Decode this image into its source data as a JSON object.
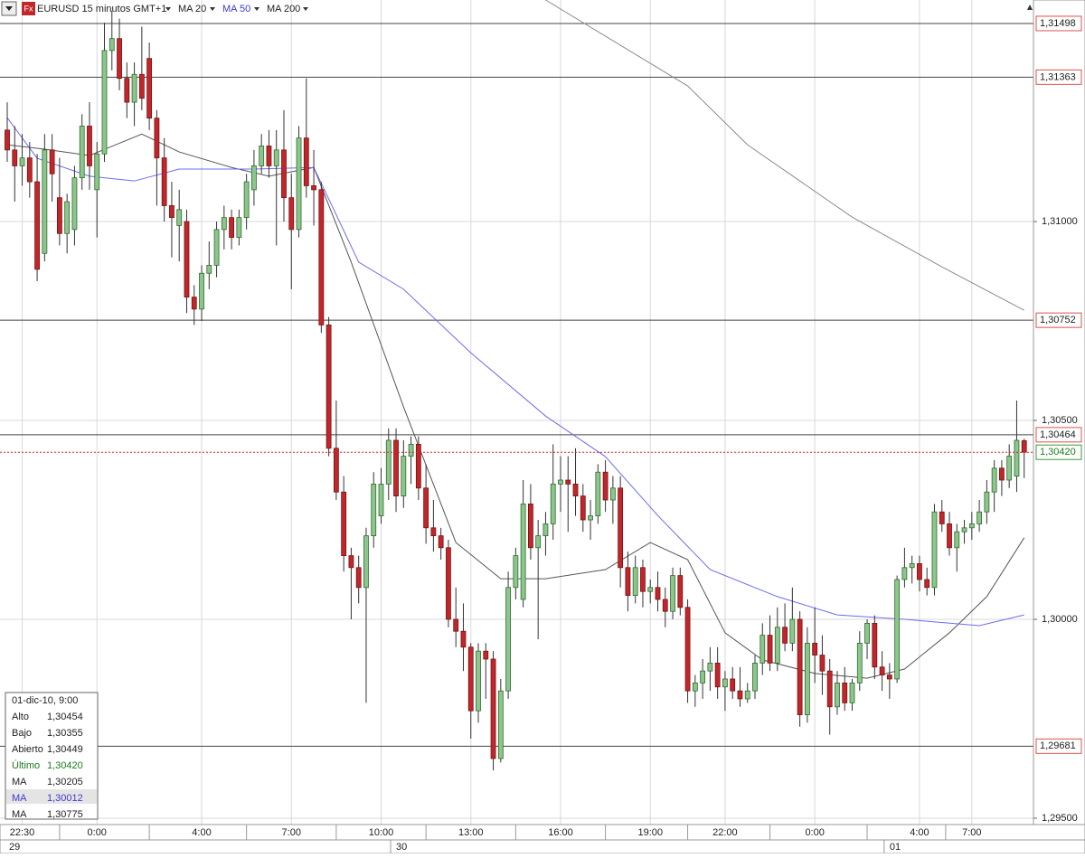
{
  "header": {
    "symbol": "EURUSD 15 minutos GMT+1",
    "icon": "Fx"
  },
  "chart_data": {
    "type": "candlestick",
    "ylim": [
      1.29484,
      1.31557
    ],
    "yticks": [
      {
        "value": 1.295,
        "label": "1,29500"
      },
      {
        "value": 1.3,
        "label": "1,30000"
      },
      {
        "value": 1.305,
        "label": "1,30500"
      },
      {
        "value": 1.31,
        "label": "1,31000"
      }
    ],
    "grid": true,
    "up_color": "#8cc68c",
    "down_color": "#c0272d",
    "categories": [
      null,
      null,
      "22:30",
      null,
      null,
      null,
      null,
      null,
      null,
      null,
      null,
      null,
      "0:00",
      null,
      null,
      null,
      null,
      null,
      null,
      null,
      null,
      null,
      null,
      null,
      null,
      null,
      "4:00",
      null,
      null,
      null,
      null,
      null,
      null,
      null,
      null,
      null,
      null,
      null,
      "7:00",
      null,
      null,
      null,
      null,
      null,
      null,
      null,
      null,
      null,
      null,
      null,
      "10:00",
      null,
      null,
      null,
      null,
      null,
      null,
      null,
      null,
      null,
      null,
      null,
      "13:00",
      null,
      null,
      null,
      null,
      null,
      null,
      null,
      null,
      null,
      null,
      null,
      "16:00",
      null,
      null,
      null,
      null,
      null,
      null,
      null,
      null,
      null,
      null,
      null,
      "19:00",
      null,
      null,
      null,
      null,
      null,
      null,
      null,
      null,
      null,
      "22:00",
      null,
      null,
      null,
      null,
      null,
      null,
      null,
      null,
      null,
      null,
      null,
      "0:00",
      null,
      null,
      null,
      null,
      null,
      null,
      null,
      null,
      null,
      null,
      null,
      null,
      null,
      "4:00",
      null,
      null,
      null,
      null,
      null,
      null,
      "7:00",
      null,
      null,
      null,
      null,
      null,
      null,
      null
    ],
    "days": [
      "29",
      null,
      null,
      null,
      null,
      null,
      null,
      null,
      null,
      null,
      null,
      null,
      null,
      null,
      null,
      null,
      null,
      null,
      null,
      null,
      null,
      null,
      null,
      null,
      null,
      null,
      null,
      null,
      null,
      null,
      null,
      null,
      null,
      null,
      null,
      null,
      null,
      null,
      null,
      null,
      null,
      null,
      null,
      null,
      null,
      null,
      null,
      null,
      null,
      null,
      null,
      null,
      "30",
      null,
      null,
      null,
      null,
      null,
      null,
      null,
      null,
      null,
      null,
      null,
      null,
      null,
      null,
      null,
      null,
      null,
      null,
      null,
      null,
      null,
      null,
      null,
      null,
      null,
      null,
      null,
      null,
      null,
      null,
      null,
      null,
      null,
      null,
      null,
      null,
      null,
      null,
      null,
      null,
      null,
      null,
      null,
      null,
      null,
      null,
      null,
      null,
      null,
      null,
      null,
      null,
      null,
      null,
      null,
      null,
      null,
      null,
      null,
      null,
      null,
      null,
      null,
      null,
      null,
      "01",
      null,
      null,
      null,
      null,
      null,
      null,
      null,
      null,
      null,
      null,
      null,
      null,
      null,
      null,
      null,
      null,
      null,
      null
    ],
    "open": [
      1.3123,
      1.3118,
      1.3114,
      1.3116,
      1.311,
      1.3092,
      1.3118,
      1.3106,
      1.3097,
      1.3098,
      1.3111,
      1.3124,
      1.3108,
      1.3117,
      1.3143,
      1.3146,
      1.3136,
      1.313,
      1.3137,
      1.3141,
      1.3126,
      1.3116,
      1.3104,
      1.3099,
      1.31,
      1.3081,
      1.3078,
      1.3087,
      1.3089,
      1.3098,
      1.3101,
      1.3096,
      1.3101,
      1.3108,
      1.3114,
      1.3119,
      1.3114,
      1.3118,
      1.3106,
      1.3098,
      1.3121,
      1.3109,
      1.3108,
      1.3074,
      1.3043,
      1.3032,
      1.3016,
      1.3013,
      1.3008,
      1.3021,
      1.3026,
      1.3034,
      1.3045,
      1.3031,
      1.3041,
      1.3044,
      1.3033,
      1.3023,
      1.3021,
      1.3018,
      1.3,
      1.2997,
      1.2993,
      1.2977,
      1.2992,
      1.299,
      1.2965,
      1.2982,
      1.3008,
      1.3005,
      1.3029,
      1.3018,
      1.3021,
      1.3024,
      1.3034,
      1.3035,
      1.3034,
      1.3031,
      1.3025,
      1.3026,
      1.3037,
      1.303,
      1.3033,
      1.3013,
      1.3006,
      1.3013,
      1.3007,
      1.3008,
      1.3005,
      1.3002,
      1.3011,
      1.3003,
      1.2982,
      1.2984,
      1.2987,
      1.2989,
      1.2983,
      1.2985,
      1.2982,
      1.298,
      1.2982,
      1.2989,
      1.2996,
      1.2989,
      1.2998,
      1.2994,
      1.3,
      1.2976,
      1.2994,
      1.2991,
      1.2987,
      1.2978,
      1.2984,
      1.2979,
      1.2984,
      1.2994,
      1.2999,
      1.2988,
      1.2986,
      1.2985,
      1.301,
      1.3013,
      1.3014,
      1.301,
      1.3008,
      1.3027,
      1.3024,
      1.3018,
      1.3022,
      1.3023,
      1.3024,
      1.3027,
      1.3032,
      1.3038,
      1.3035,
      1.3036,
      1.30449
    ],
    "high": [
      1.313,
      1.3124,
      1.3122,
      1.312,
      1.3117,
      1.3122,
      1.3122,
      1.3116,
      1.3107,
      1.3114,
      1.3127,
      1.313,
      1.312,
      1.315,
      1.3153,
      1.3151,
      1.314,
      1.314,
      1.3149,
      1.3145,
      1.3128,
      1.3121,
      1.311,
      1.3108,
      1.3103,
      1.3084,
      1.3089,
      1.3095,
      1.31,
      1.3104,
      1.3103,
      1.3103,
      1.3112,
      1.3118,
      1.3122,
      1.3123,
      1.3123,
      1.3128,
      1.3112,
      1.3124,
      1.3136,
      1.3118,
      1.311,
      1.3076,
      1.3055,
      1.3036,
      1.3018,
      1.3016,
      1.3023,
      1.3037,
      1.3038,
      1.3048,
      1.3048,
      1.3045,
      1.3046,
      1.3046,
      1.3039,
      1.303,
      1.3023,
      1.302,
      1.3008,
      1.3004,
      1.2994,
      1.2994,
      1.2994,
      1.2992,
      1.2985,
      1.3012,
      1.3018,
      1.3035,
      1.3034,
      1.3025,
      1.3027,
      1.3044,
      1.3041,
      1.3041,
      1.3043,
      1.3034,
      1.303,
      1.3039,
      1.304,
      1.3036,
      1.3036,
      1.3017,
      1.3016,
      1.3015,
      1.301,
      1.3012,
      1.3008,
      1.3013,
      1.3013,
      1.3005,
      1.2986,
      1.299,
      1.2993,
      1.2993,
      1.2987,
      1.2988,
      1.2988,
      1.2984,
      1.2991,
      1.2999,
      1.3001,
      1.3003,
      1.3004,
      1.3008,
      1.3002,
      1.2998,
      1.3003,
      1.2996,
      1.299,
      1.2987,
      1.2988,
      1.2985,
      1.2997,
      1.3,
      1.3001,
      1.2992,
      1.2989,
      1.3011,
      1.3018,
      1.3016,
      1.3016,
      1.3013,
      1.3029,
      1.303,
      1.3027,
      1.3024,
      1.3025,
      1.3027,
      1.303,
      1.3035,
      1.304,
      1.304,
      1.3044,
      1.3055,
      1.30454
    ],
    "low": [
      1.3115,
      1.3105,
      1.3109,
      1.3106,
      1.3085,
      1.309,
      1.3105,
      1.3094,
      1.3092,
      1.3094,
      1.3108,
      1.3108,
      1.3096,
      1.3115,
      1.3138,
      1.3133,
      1.3126,
      1.3124,
      1.3128,
      1.3123,
      1.3104,
      1.31,
      1.3091,
      1.309,
      1.3077,
      1.3074,
      1.3075,
      1.3083,
      1.3086,
      1.3093,
      1.3093,
      1.3094,
      1.3098,
      1.3104,
      1.3112,
      1.3111,
      1.3094,
      1.31,
      1.3083,
      1.3096,
      1.3106,
      1.3099,
      1.3072,
      1.3041,
      1.303,
      1.3012,
      1.3,
      1.3004,
      1.2979,
      1.3018,
      1.3024,
      1.303,
      1.3027,
      1.3028,
      1.3034,
      1.303,
      1.3019,
      1.3017,
      1.3015,
      1.2998,
      1.2993,
      1.2987,
      1.297,
      1.2974,
      1.298,
      1.2962,
      1.2964,
      1.298,
      1.3005,
      1.3003,
      1.3015,
      1.2995,
      1.3016,
      1.302,
      1.3027,
      1.3022,
      1.3026,
      1.3022,
      1.302,
      1.3024,
      1.3027,
      1.3024,
      1.3008,
      1.3002,
      1.3004,
      1.3003,
      1.3004,
      1.3002,
      1.2998,
      1.3,
      1.3001,
      1.2979,
      1.2978,
      1.298,
      1.2982,
      1.298,
      1.2977,
      1.298,
      1.2978,
      1.2979,
      1.298,
      1.2986,
      1.2987,
      1.2987,
      1.2992,
      1.2992,
      1.2973,
      1.2974,
      1.2984,
      1.2981,
      1.2971,
      1.2976,
      1.2977,
      1.2977,
      1.2982,
      1.299,
      1.2985,
      1.2982,
      1.298,
      1.2984,
      1.3008,
      1.3009,
      1.3007,
      1.3006,
      1.3006,
      1.3022,
      1.3016,
      1.3012,
      1.3019,
      1.302,
      1.3022,
      1.3024,
      1.3027,
      1.3031,
      1.3033,
      1.3032,
      1.30355
    ],
    "close": [
      1.3118,
      1.3114,
      1.3116,
      1.311,
      1.3088,
      1.3118,
      1.3112,
      1.3097,
      1.3105,
      1.3111,
      1.3124,
      1.3114,
      1.3117,
      1.3143,
      1.3146,
      1.3136,
      1.313,
      1.3137,
      1.3131,
      1.3126,
      1.3116,
      1.3104,
      1.3101,
      1.3103,
      1.3081,
      1.3078,
      1.3087,
      1.3089,
      1.3098,
      1.3101,
      1.3096,
      1.3101,
      1.311,
      1.3114,
      1.3119,
      1.3114,
      1.3118,
      1.3106,
      1.3098,
      1.3121,
      1.3109,
      1.3108,
      1.3074,
      1.3043,
      1.3032,
      1.3016,
      1.3013,
      1.3008,
      1.3021,
      1.3034,
      1.3034,
      1.3045,
      1.3031,
      1.3041,
      1.3044,
      1.3033,
      1.3023,
      1.3021,
      1.3018,
      1.3,
      1.2997,
      1.2993,
      1.2977,
      1.2992,
      1.299,
      1.2965,
      1.2982,
      1.3008,
      1.3016,
      1.3029,
      1.3018,
      1.3021,
      1.3024,
      1.3034,
      1.3035,
      1.3034,
      1.3031,
      1.3025,
      1.3026,
      1.3037,
      1.303,
      1.3033,
      1.3013,
      1.3006,
      1.3013,
      1.3007,
      1.3008,
      1.3005,
      1.3002,
      1.3011,
      1.3003,
      1.2982,
      1.2984,
      1.2987,
      1.2989,
      1.2983,
      1.2985,
      1.2982,
      1.298,
      1.2982,
      1.2989,
      1.2996,
      1.2989,
      1.2998,
      1.2994,
      1.3,
      1.2976,
      1.2994,
      1.2991,
      1.2987,
      1.2978,
      1.2984,
      1.2979,
      1.2984,
      1.2994,
      1.2999,
      1.2988,
      1.2986,
      1.2985,
      1.301,
      1.3013,
      1.3014,
      1.301,
      1.3008,
      1.3027,
      1.3024,
      1.3018,
      1.3022,
      1.3023,
      1.3024,
      1.3027,
      1.3032,
      1.3038,
      1.3035,
      1.3041,
      1.3045,
      1.3042
    ],
    "indicators": [
      {
        "name": "MA 20",
        "color": "#555555",
        "x": [
          0,
          5,
          11,
          18,
          23,
          30,
          35,
          41,
          46,
          53,
          60,
          66,
          72,
          80,
          86,
          91,
          96,
          101,
          108,
          115,
          120,
          126,
          131,
          136
        ],
        "values": [
          1.31193,
          1.31182,
          1.31166,
          1.3122,
          1.31175,
          1.31136,
          1.31114,
          1.31136,
          1.30898,
          1.30534,
          1.30193,
          1.30102,
          1.30102,
          1.30125,
          1.30193,
          1.3015,
          1.29966,
          1.29898,
          1.29864,
          1.29852,
          1.29875,
          1.29966,
          1.30057,
          1.30205
        ]
      },
      {
        "name": "MA 50",
        "color": "#6b6bf0",
        "x": [
          0,
          4,
          11,
          17,
          23,
          33,
          41,
          47,
          53,
          62,
          72,
          80,
          87,
          94,
          103,
          111,
          120,
          130,
          136
        ],
        "values": [
          1.31261,
          1.31159,
          1.31114,
          1.31102,
          1.31132,
          1.31132,
          1.31136,
          1.30898,
          1.3083,
          1.3067,
          1.30511,
          1.30409,
          1.30261,
          1.30125,
          1.30057,
          1.30011,
          1.3,
          1.29984,
          1.30011
        ]
      },
      {
        "name": "MA 200",
        "color": "#8a8a8a",
        "x": [
          72,
          91,
          99,
          113,
          125,
          136
        ],
        "values": [
          1.31557,
          1.31341,
          1.31193,
          1.31011,
          1.30886,
          1.30777
        ]
      }
    ],
    "levels": [
      {
        "value": 1.31498,
        "label": "1,31498"
      },
      {
        "value": 1.31363,
        "label": "1,31363"
      },
      {
        "value": 1.30752,
        "label": "1,30752"
      },
      {
        "value": 1.30464,
        "label": "1,30464"
      },
      {
        "value": 1.29681,
        "label": "1,29681"
      }
    ],
    "last_price": {
      "value": 1.3042,
      "label": "1,30420"
    }
  },
  "info_box": {
    "title": "01-dic-10, 9:00",
    "rows": [
      {
        "label": "Alto",
        "value": "1,30454"
      },
      {
        "label": "Bajo",
        "value": "1,30355"
      },
      {
        "label": "Abierto",
        "value": "1,30449"
      },
      {
        "label": "Último",
        "value": "1,30420"
      },
      {
        "label": "MA",
        "value": "1,30205"
      },
      {
        "label": "MA",
        "value": "1,30012"
      },
      {
        "label": "MA",
        "value": "1,30775"
      }
    ]
  }
}
